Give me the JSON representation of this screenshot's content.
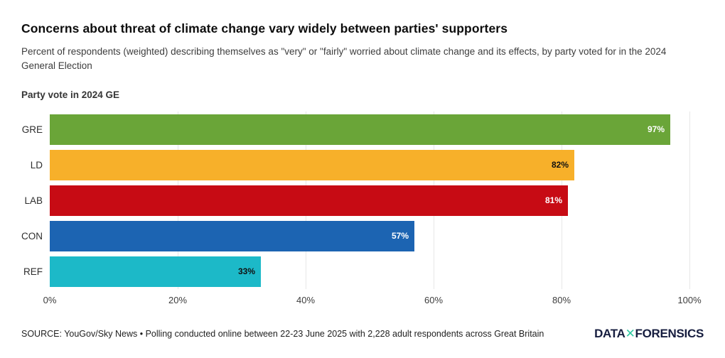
{
  "header": {
    "title": "Concerns about threat of climate change vary widely between parties' supporters",
    "subtitle": "Percent of respondents (weighted) describing themselves as \"very\" or \"fairly\" worried about climate change and its effects, by party voted for in the 2024 General Election",
    "axis_title": "Party vote in 2024 GE"
  },
  "chart_data": {
    "type": "bar",
    "orientation": "horizontal",
    "title": "Concerns about threat of climate change vary widely between parties' supporters",
    "subtitle": "Percent of respondents (weighted) describing themselves as \"very\" or \"fairly\" worried about climate change and its effects, by party voted for in the 2024 General Election",
    "ylabel": "Party vote in 2024 GE",
    "xlabel": "",
    "categories": [
      "GRE",
      "LD",
      "LAB",
      "CON",
      "REF"
    ],
    "values": [
      97,
      82,
      81,
      57,
      33
    ],
    "value_labels": [
      "97%",
      "82%",
      "81%",
      "57%",
      "33%"
    ],
    "bar_colors": [
      "#6aa538",
      "#f7b02a",
      "#c70b14",
      "#1c64b2",
      "#1cb9c8"
    ],
    "value_label_colors": [
      "#ffffff",
      "#111111",
      "#ffffff",
      "#ffffff",
      "#111111"
    ],
    "xlim": [
      0,
      100
    ],
    "x_ticks": [
      {
        "value": 0,
        "label": "0%"
      },
      {
        "value": 20,
        "label": "20%"
      },
      {
        "value": 40,
        "label": "40%"
      },
      {
        "value": 60,
        "label": "60%"
      },
      {
        "value": 80,
        "label": "80%"
      },
      {
        "value": 100,
        "label": "100%"
      }
    ],
    "grid": "vertical",
    "legend": "none"
  },
  "footer": {
    "source": "SOURCE: YouGov/Sky News • Polling conducted online between 22-23 June 2025 with 2,228 adult respondents across Great Britain",
    "logo": {
      "part1": "DATA",
      "separator": "✕",
      "part2": "FORENSICS"
    }
  },
  "colors": {
    "logo_text": "#161d3f",
    "logo_x": "#2fc9a2",
    "gridline": "#e7e7e7"
  }
}
